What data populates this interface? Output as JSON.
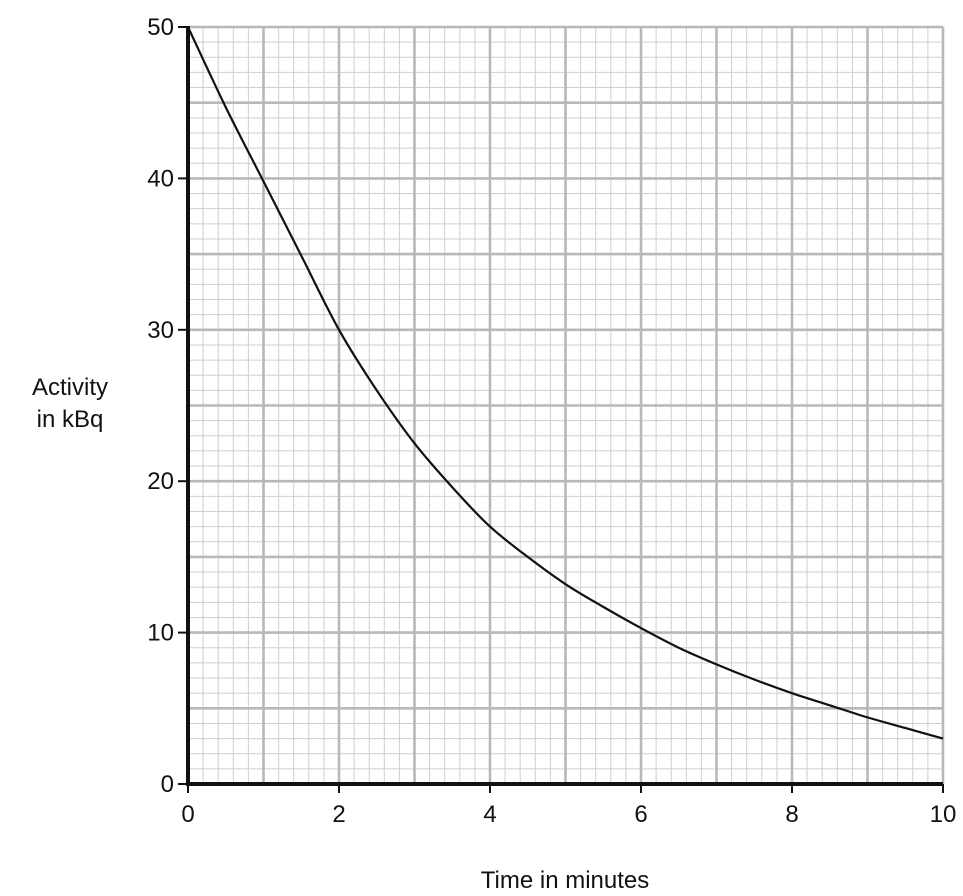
{
  "chart_data": {
    "type": "line",
    "title": "",
    "xlabel": "Time in minutes",
    "ylabel_lines": [
      "Activity",
      "in kBq"
    ],
    "xlim": [
      0,
      10
    ],
    "ylim": [
      0,
      50
    ],
    "x_ticks": [
      0,
      2,
      4,
      6,
      8,
      10
    ],
    "y_ticks": [
      0,
      10,
      20,
      30,
      40,
      50
    ],
    "grid": true,
    "grid_major_x": 1,
    "grid_major_y": 5,
    "grid_minor_x": 0.2,
    "grid_minor_y": 1,
    "series": [
      {
        "x": [
          0,
          0.5,
          1,
          1.5,
          2,
          2.5,
          3,
          3.5,
          4,
          4.5,
          5,
          5.5,
          6,
          6.5,
          7,
          7.5,
          8,
          8.5,
          9,
          9.5,
          10
        ],
        "y": [
          50,
          44.7,
          39.8,
          34.9,
          30.0,
          26.0,
          22.5,
          19.6,
          17.0,
          15.0,
          13.2,
          11.7,
          10.3,
          9.0,
          7.9,
          6.9,
          6.0,
          5.2,
          4.4,
          3.7,
          3.0
        ]
      }
    ]
  },
  "colors": {
    "grid_major": "#b8b8b8",
    "grid_minor": "#cfcfcf",
    "axis": "#111111",
    "line": "#111111"
  }
}
